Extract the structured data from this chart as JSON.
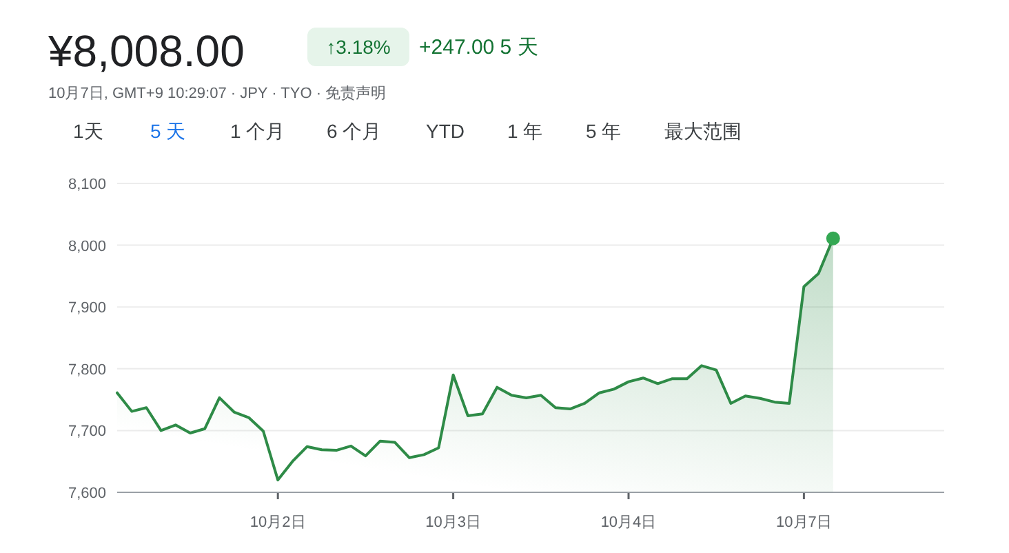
{
  "chart_data": {
    "type": "area",
    "title": "¥8,008.00",
    "subtitle": "10月7日, GMT+9 10:29:07 · JPY · TYO · 免责声明",
    "annotations": [
      "↑3.18%",
      "+247.00 5 天",
      "1天",
      "5 天",
      "1 个月",
      "6 个月",
      "YTD",
      "1 年",
      "5 年",
      "最大范围"
    ],
    "categories": [
      null,
      null,
      null,
      null,
      null,
      null,
      null,
      null,
      null,
      null,
      null,
      "10月2日",
      null,
      null,
      null,
      null,
      null,
      null,
      null,
      null,
      null,
      null,
      null,
      "10月3日",
      null,
      null,
      null,
      null,
      null,
      null,
      null,
      null,
      null,
      null,
      null,
      "10月4日",
      null,
      null,
      null,
      null,
      null,
      null,
      null,
      null,
      null,
      null,
      null,
      "10月7日",
      null,
      null
    ],
    "ylim": [
      7600,
      8100
    ],
    "yticks": [
      {
        "value": 7600,
        "label": "7,600"
      },
      {
        "value": 7700,
        "label": "7,700"
      },
      {
        "value": 7800,
        "label": "7,800"
      },
      {
        "value": 7900,
        "label": "7,900"
      },
      {
        "value": 8000,
        "label": "8,000"
      },
      {
        "value": 8100,
        "label": "8,100"
      }
    ],
    "grid": "y",
    "series": [
      {
        "color": "#2e8b47",
        "values": [
          7761,
          7731,
          7737,
          7700,
          7709,
          7696,
          7703,
          7753,
          7730,
          7721,
          7699,
          7620,
          7650,
          7674,
          7669,
          7668,
          7675,
          7659,
          7683,
          7681,
          7656,
          7661,
          7672,
          7790,
          7724,
          7727,
          7770,
          7757,
          7753,
          7757,
          7737,
          7735,
          7744,
          7761,
          7767,
          7779,
          7785,
          7776,
          7784,
          7784,
          7805,
          7798,
          7744,
          7756,
          7752,
          7746,
          7744,
          7933,
          7954,
          8011
        ]
      },
      {
        "type": "scatter",
        "color": "#34a853",
        "values": [
          null,
          null,
          null,
          null,
          null,
          null,
          null,
          null,
          null,
          null,
          null,
          null,
          null,
          null,
          null,
          null,
          null,
          null,
          null,
          null,
          null,
          null,
          null,
          null,
          null,
          null,
          null,
          null,
          null,
          null,
          null,
          null,
          null,
          null,
          null,
          null,
          null,
          null,
          null,
          null,
          null,
          null,
          null,
          null,
          null,
          null,
          null,
          null,
          null,
          8011
        ]
      }
    ]
  }
}
